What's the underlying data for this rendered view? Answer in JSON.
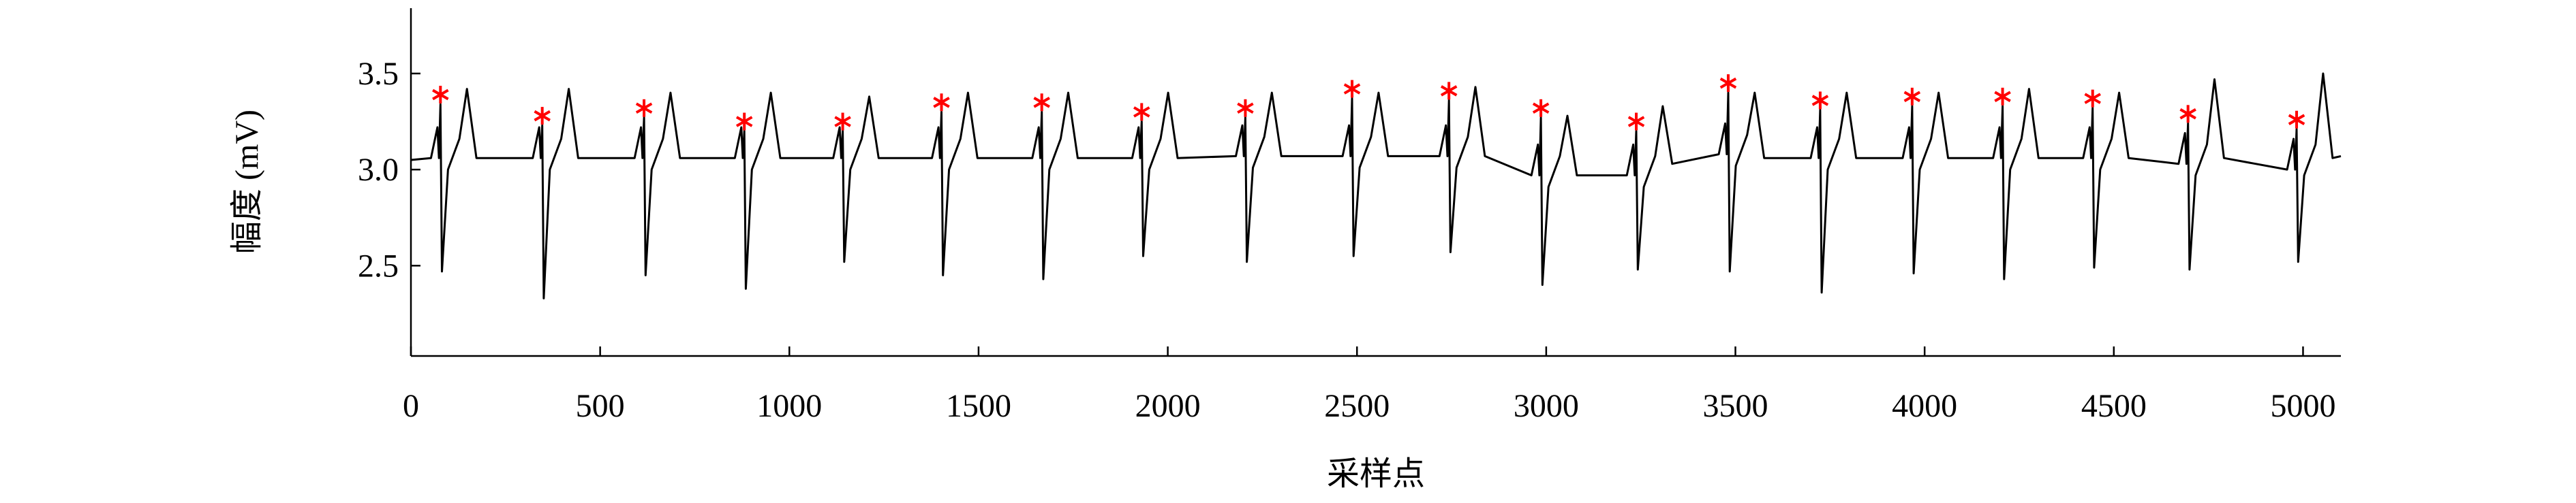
{
  "chart_data": {
    "type": "line",
    "xlabel": "采样点",
    "ylabel": "幅度 (mV)",
    "xlim": [
      0,
      5100
    ],
    "ylim": [
      2.03,
      3.84
    ],
    "xticks": [
      0,
      500,
      1000,
      1500,
      2000,
      2500,
      3000,
      3500,
      4000,
      4500,
      5000
    ],
    "yticks": [
      2.5,
      {
        "value": 3,
        "label": "3.0"
      },
      3.5
    ],
    "line": {
      "color": "#000000",
      "x": [
        0,
        53,
        70,
        74,
        78,
        82,
        98,
        128,
        148,
        173,
        322,
        339,
        343,
        347,
        351,
        367,
        397,
        417,
        442,
        591,
        608,
        612,
        616,
        620,
        636,
        666,
        686,
        711,
        856,
        873,
        877,
        881,
        885,
        901,
        931,
        951,
        976,
        1116,
        1133,
        1137,
        1141,
        1145,
        1161,
        1191,
        1211,
        1236,
        1377,
        1394,
        1398,
        1402,
        1406,
        1422,
        1452,
        1472,
        1497,
        1642,
        1659,
        1663,
        1667,
        1671,
        1687,
        1717,
        1737,
        1762,
        1906,
        1923,
        1927,
        1931,
        1935,
        1951,
        1981,
        2001,
        2026,
        2180,
        2197,
        2201,
        2205,
        2209,
        2225,
        2255,
        2275,
        2300,
        2462,
        2479,
        2483,
        2487,
        2491,
        2507,
        2537,
        2557,
        2582,
        2718,
        2735,
        2739,
        2743,
        2747,
        2763,
        2793,
        2813,
        2838,
        2961,
        2978,
        2982,
        2986,
        2990,
        3006,
        3036,
        3056,
        3081,
        3213,
        3230,
        3234,
        3238,
        3242,
        3258,
        3288,
        3308,
        3333,
        3456,
        3473,
        3477,
        3481,
        3485,
        3501,
        3531,
        3551,
        3576,
        3699,
        3716,
        3720,
        3724,
        3728,
        3744,
        3774,
        3794,
        3819,
        3942,
        3959,
        3963,
        3967,
        3971,
        3987,
        4017,
        4037,
        4062,
        4181,
        4198,
        4202,
        4206,
        4210,
        4226,
        4256,
        4276,
        4301,
        4419,
        4436,
        4440,
        4444,
        4448,
        4464,
        4494,
        4514,
        4539,
        4671,
        4688,
        4692,
        4696,
        4700,
        4716,
        4746,
        4766,
        4791,
        4958,
        4975,
        4979,
        4983,
        4987,
        5003,
        5033,
        5053,
        5078,
        5100
      ],
      "values": [
        3.05,
        3.06,
        3.22,
        3.06,
        3.34,
        2.47,
        3.0,
        3.16,
        3.42,
        3.06,
        3.06,
        3.22,
        3.06,
        3.23,
        2.33,
        3.0,
        3.16,
        3.42,
        3.06,
        3.06,
        3.22,
        3.06,
        3.27,
        2.45,
        3.0,
        3.16,
        3.4,
        3.06,
        3.06,
        3.22,
        3.06,
        3.2,
        2.38,
        3.0,
        3.16,
        3.4,
        3.06,
        3.06,
        3.22,
        3.06,
        3.2,
        2.52,
        3.0,
        3.16,
        3.38,
        3.06,
        3.06,
        3.22,
        3.06,
        3.3,
        2.45,
        3.0,
        3.16,
        3.4,
        3.06,
        3.06,
        3.22,
        3.06,
        3.3,
        2.43,
        3.0,
        3.16,
        3.4,
        3.06,
        3.06,
        3.22,
        3.06,
        3.25,
        2.55,
        3.0,
        3.16,
        3.4,
        3.06,
        3.07,
        3.23,
        3.07,
        3.27,
        2.52,
        3.01,
        3.17,
        3.4,
        3.07,
        3.07,
        3.23,
        3.07,
        3.37,
        2.55,
        3.01,
        3.17,
        3.4,
        3.07,
        3.07,
        3.23,
        3.07,
        3.36,
        2.57,
        3.01,
        3.17,
        3.43,
        3.07,
        2.97,
        3.13,
        2.97,
        3.27,
        2.4,
        2.91,
        3.07,
        3.28,
        2.97,
        2.97,
        3.13,
        2.97,
        3.2,
        2.48,
        2.91,
        3.07,
        3.33,
        3.03,
        3.08,
        3.24,
        3.08,
        3.4,
        2.47,
        3.02,
        3.18,
        3.4,
        3.06,
        3.06,
        3.22,
        3.06,
        3.31,
        2.36,
        3.0,
        3.16,
        3.4,
        3.06,
        3.06,
        3.22,
        3.06,
        3.33,
        2.46,
        3.0,
        3.16,
        3.4,
        3.06,
        3.06,
        3.22,
        3.06,
        3.33,
        2.43,
        3.0,
        3.16,
        3.42,
        3.06,
        3.06,
        3.22,
        3.06,
        3.32,
        2.49,
        3.0,
        3.16,
        3.4,
        3.06,
        3.03,
        3.19,
        3.03,
        3.24,
        2.48,
        2.97,
        3.13,
        3.47,
        3.06,
        3.0,
        3.16,
        3.0,
        3.21,
        2.52,
        2.97,
        3.13,
        3.5,
        3.06,
        3.07
      ]
    },
    "markers": {
      "color": "#ff0000",
      "x": [
        78,
        347,
        616,
        881,
        1141,
        1402,
        1667,
        1931,
        2205,
        2487,
        2743,
        2986,
        3238,
        3481,
        3724,
        3967,
        4206,
        4444,
        4696,
        4983
      ],
      "values": [
        3.39,
        3.28,
        3.32,
        3.25,
        3.25,
        3.35,
        3.35,
        3.3,
        3.32,
        3.42,
        3.41,
        3.32,
        3.25,
        3.45,
        3.36,
        3.38,
        3.38,
        3.37,
        3.29,
        3.26
      ]
    }
  }
}
